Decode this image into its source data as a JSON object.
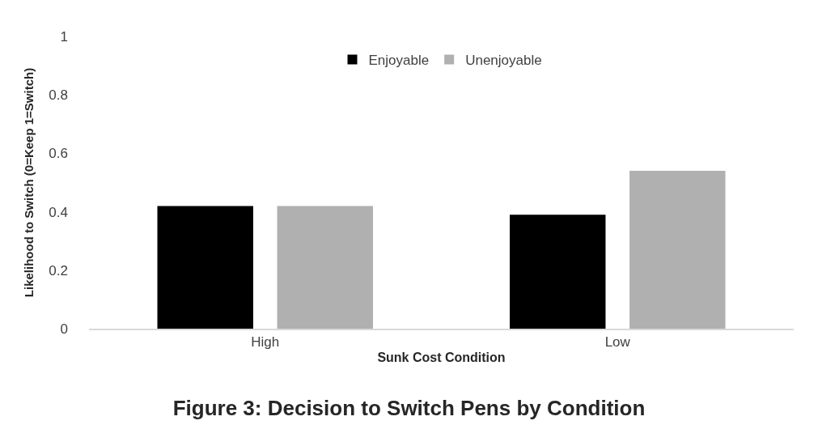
{
  "chart_data": {
    "type": "bar",
    "title": "Figure 3: Decision to Switch Pens by Condition",
    "xlabel": "Sunk Cost Condition",
    "ylabel": "Likelihood to Switch (0=Keep 1=Switch)",
    "categories": [
      "High",
      "Low"
    ],
    "series": [
      {
        "name": "Enjoyable",
        "color": "#000000",
        "values": [
          0.42,
          0.39
        ]
      },
      {
        "name": "Unenjoyable",
        "color": "#b0b0b0",
        "values": [
          0.42,
          0.54
        ]
      }
    ],
    "ylim": [
      0,
      1
    ],
    "yticks": [
      0,
      0.2,
      0.4,
      0.6,
      0.8,
      1
    ],
    "grid": false,
    "legend": "top"
  }
}
